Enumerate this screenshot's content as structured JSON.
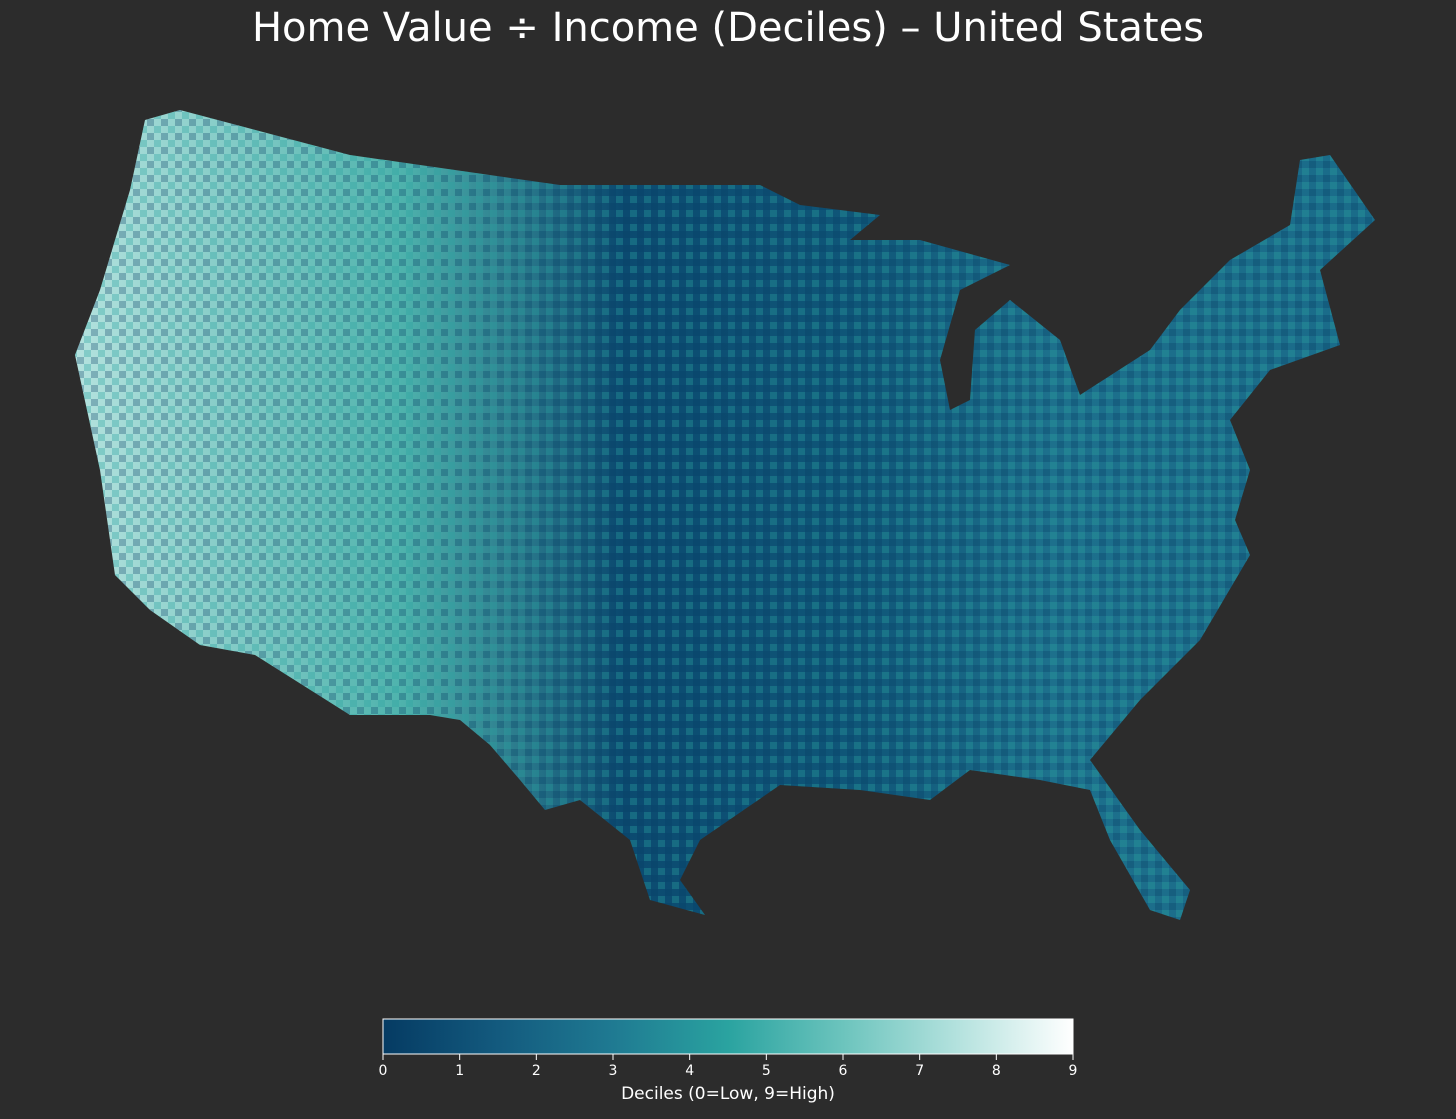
{
  "title": "Home Value ÷ Income (Deciles) – United States",
  "colorbar": {
    "label": "Deciles (0=Low, 9=High)",
    "lim": [
      0,
      9
    ],
    "ticks": [
      0,
      1,
      2,
      3,
      4,
      5,
      6,
      7,
      8,
      9
    ],
    "colors": [
      "#053b63",
      "#135a7e",
      "#1f7a92",
      "#2aa3a0",
      "#6cc4bd",
      "#b4e2de",
      "#ffffff"
    ]
  }
}
